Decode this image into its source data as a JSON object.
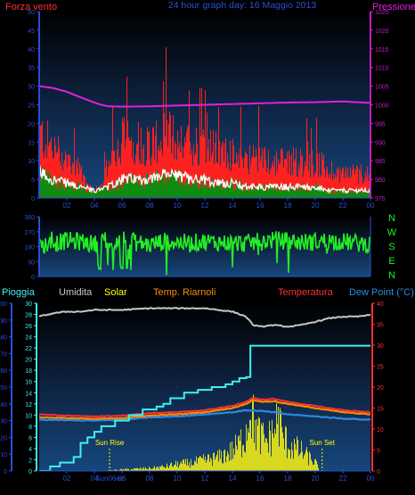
{
  "colors": {
    "background": "#000000",
    "plot_top": "#123a6b",
    "plot_bottom": "#0a1830",
    "axis_left": "#2a4fd6",
    "axis_right": "#c020c0",
    "wind": "#ff2020",
    "gust_white": "#ffffff",
    "wind_green": "#108a10",
    "pressure": "#e020e0",
    "direction": "#22ee22",
    "rain": "#40f0f0",
    "humidity": "#c8c8c8",
    "solar": "#ffff00",
    "solar_fill": "#d8d820",
    "temp": "#ff3030",
    "temp_orange": "#ff8800",
    "dewpoint": "#2a8adf",
    "sun_markers": "#ffff00"
  },
  "header": {
    "left_label": "Forza vento",
    "title": "24 hour graph day: 16 Maggio 2013",
    "right_label": "Pressione"
  },
  "legend_bottom": {
    "pioggia": "Pioggia",
    "umidita": "Umidita",
    "solar": "Solar",
    "temp_riarnoli": "Temp. Riarnoli",
    "temperatura": "Temperatura",
    "dewpoint": "Dew Point (°C)"
  },
  "compass": [
    "N",
    "W",
    "S",
    "E",
    "N"
  ],
  "annotations": {
    "sun_rise": "Sun Rise",
    "sun_set": "Sun Set",
    "sun_date": "Sun06ec"
  },
  "chart_data": [
    {
      "type": "line",
      "panel": "wind_pressure",
      "x_ticks": [
        "02",
        "04",
        "06",
        "08",
        "10",
        "12",
        "14",
        "16",
        "18",
        "20",
        "22",
        "00"
      ],
      "left_axis": {
        "ticks": [
          "0",
          "5",
          "10",
          "15",
          "20",
          "25",
          "30",
          "35",
          "40",
          "45",
          "50"
        ],
        "ylim": [
          0,
          50
        ]
      },
      "right_axis": {
        "ticks": [
          "975",
          "980",
          "985",
          "990",
          "995",
          "1000",
          "1005",
          "1010",
          "1015",
          "1020",
          "1025"
        ],
        "ylim": [
          975,
          1025
        ]
      },
      "series": [
        {
          "key": "pressure",
          "x": [
            0,
            1,
            2,
            3,
            4,
            4.5,
            5,
            6,
            8,
            10,
            12,
            14,
            16,
            18,
            20,
            22,
            24
          ],
          "values": [
            1005,
            1004.5,
            1003.5,
            1002,
            1000.6,
            1000,
            999.6,
            999.5,
            999.6,
            999.8,
            1000,
            1000.2,
            1000.4,
            1000.6,
            1000.7,
            1000.9,
            1000.5
          ]
        },
        {
          "key": "wind_avg",
          "x": [
            0,
            1,
            2,
            3,
            4,
            5,
            6,
            7,
            8,
            9,
            10,
            11,
            12,
            13,
            14,
            15,
            16,
            17,
            18,
            19,
            20,
            21,
            22,
            23,
            24
          ],
          "values": [
            7,
            5,
            4,
            3,
            2,
            3,
            5,
            5,
            5,
            6,
            6,
            5,
            5,
            4,
            4,
            3,
            3,
            3,
            3,
            3,
            3,
            2,
            2,
            2,
            2
          ]
        },
        {
          "key": "wind_gust",
          "x": [
            0,
            1,
            2,
            3,
            4,
            5,
            6,
            7,
            8,
            9,
            10,
            11,
            12,
            13,
            14,
            15,
            16,
            17,
            18,
            19,
            20,
            21,
            22,
            23,
            24
          ],
          "values": [
            18,
            14,
            11,
            8,
            5,
            9,
            17,
            16,
            15,
            18,
            17,
            15,
            15,
            13,
            12,
            11,
            11,
            10,
            11,
            10,
            10,
            8,
            7,
            7,
            7
          ]
        }
      ]
    },
    {
      "type": "line",
      "panel": "wind_direction",
      "left_axis": {
        "ticks": [
          "0",
          "90",
          "180",
          "270",
          "360"
        ],
        "ylim": [
          0,
          360
        ]
      },
      "series": [
        {
          "key": "direction",
          "x": [
            0,
            1,
            2,
            3,
            4,
            5,
            6,
            7,
            8,
            9,
            10,
            11,
            12,
            13,
            14,
            15,
            16,
            17,
            18,
            19,
            20,
            21,
            22,
            23,
            24
          ],
          "values": [
            185,
            200,
            215,
            210,
            195,
            220,
            230,
            205,
            190,
            210,
            205,
            200,
            210,
            205,
            200,
            200,
            210,
            220,
            215,
            205,
            210,
            215,
            210,
            200,
            195
          ]
        }
      ]
    },
    {
      "type": "line",
      "panel": "weather",
      "left_axis_pct": {
        "ticks": [
          "0",
          "10",
          "20",
          "30",
          "40",
          "50",
          "60",
          "70",
          "80",
          "90",
          "100"
        ],
        "ylim": [
          0,
          100
        ]
      },
      "left_axis_rain": {
        "ticks": [
          "0",
          "2",
          "4",
          "6",
          "8",
          "10",
          "12",
          "14",
          "16",
          "18",
          "20",
          "22",
          "24",
          "26",
          "28",
          "30"
        ],
        "ylim": [
          0,
          30
        ]
      },
      "right_axis_temp": {
        "ticks": [
          "0",
          "5",
          "10",
          "15",
          "20",
          "25",
          "30",
          "35",
          "40"
        ],
        "ylim": [
          0,
          40
        ]
      },
      "series": [
        {
          "key": "rain",
          "unit": "mm",
          "x": [
            0,
            0.8,
            1.5,
            2.5,
            3.0,
            3.5,
            4.0,
            4.5,
            5.5,
            6.5,
            7.5,
            8.5,
            9.0,
            9.5,
            10.5,
            11.5,
            12.5,
            13.5,
            14.0,
            14.5,
            15.0,
            15.3,
            24
          ],
          "values": [
            0,
            0.8,
            1.5,
            2.5,
            5,
            6,
            7,
            8,
            9,
            10,
            11,
            11.5,
            12,
            13,
            14,
            14.5,
            15,
            15.5,
            16,
            16.6,
            16.8,
            22.4,
            22.4
          ]
        },
        {
          "key": "humidity",
          "unit": "%",
          "x": [
            0,
            1,
            2,
            3,
            4,
            5,
            6,
            8,
            10,
            12,
            13,
            14,
            15,
            15.5,
            16,
            17,
            18,
            19,
            20,
            21,
            22,
            23,
            24
          ],
          "values": [
            92,
            94,
            95,
            95,
            96,
            96,
            96,
            97,
            97,
            97,
            96,
            95,
            92,
            87,
            86,
            87,
            86,
            87,
            89,
            91,
            92,
            92,
            93
          ]
        },
        {
          "key": "temperatura",
          "unit": "°C",
          "x": [
            0,
            2,
            4,
            6,
            8,
            10,
            12,
            13,
            14,
            15,
            15.5,
            16,
            17,
            18,
            19,
            20,
            21,
            22,
            24
          ],
          "values": [
            13.5,
            13.2,
            13.0,
            13.2,
            13.8,
            14.0,
            14.5,
            15.0,
            15.5,
            16.5,
            17.5,
            17.0,
            17.2,
            16.5,
            16.0,
            15.5,
            15.0,
            14.5,
            14.0
          ]
        },
        {
          "key": "temp_riarnoli",
          "unit": "°C",
          "x": [
            0,
            2,
            4,
            6,
            8,
            10,
            12,
            13,
            14,
            15,
            15.5,
            16,
            17,
            18,
            19,
            20,
            21,
            22,
            24
          ],
          "values": [
            12.8,
            12.6,
            12.4,
            12.6,
            13.2,
            13.5,
            14.0,
            14.5,
            15.0,
            16.0,
            17.0,
            16.5,
            16.6,
            16.0,
            15.5,
            15.0,
            14.5,
            14.0,
            13.5
          ]
        },
        {
          "key": "dewpoint",
          "unit": "°C",
          "x": [
            0,
            2,
            4,
            6,
            8,
            10,
            12,
            14,
            15,
            16,
            17,
            18,
            20,
            22,
            24
          ],
          "values": [
            12.2,
            12.1,
            12.0,
            12.2,
            12.8,
            13.0,
            13.5,
            14.0,
            14.5,
            14.3,
            14.0,
            13.5,
            13.0,
            12.5,
            12.2
          ]
        },
        {
          "key": "solar",
          "unit": "%",
          "x": [
            0,
            4.8,
            5,
            6,
            7,
            8,
            9,
            10,
            11,
            12,
            13,
            14,
            14.5,
            15,
            15.3,
            15.5,
            16,
            16.5,
            17,
            17.3,
            17.6,
            18,
            19,
            20,
            20.3,
            24
          ],
          "values": [
            0,
            0,
            0.5,
            1,
            1.5,
            2,
            3,
            5,
            6,
            8,
            10,
            15,
            20,
            30,
            55,
            35,
            25,
            22,
            30,
            40,
            25,
            20,
            14,
            6,
            0,
            0
          ]
        }
      ],
      "markers": [
        {
          "label_key": "sun_rise",
          "x": 5.1
        },
        {
          "label_key": "sun_set",
          "x": 20.5
        }
      ]
    }
  ]
}
